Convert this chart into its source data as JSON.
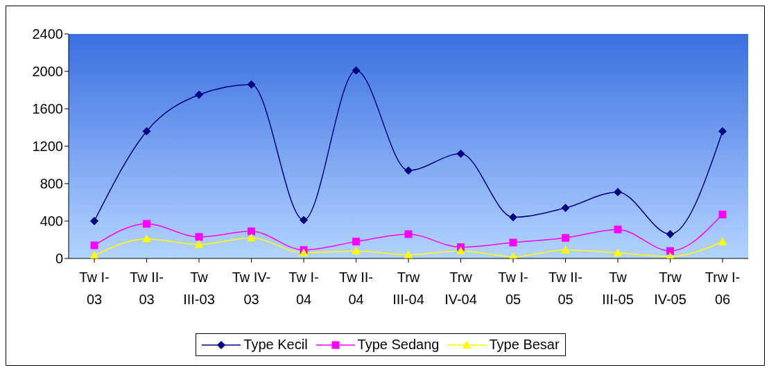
{
  "chart_data": {
    "type": "line",
    "categories": [
      "Tw I-03",
      "Tw II-03",
      "Tw III-03",
      "Tw IV-03",
      "Tw I-04",
      "Tw II-04",
      "Trw III-04",
      "Trw IV-04",
      "Tw I-05",
      "Tw II-05",
      "Tw III-05",
      "Trw IV-05",
      "Trw I-06"
    ],
    "series": [
      {
        "name": "Type Kecil",
        "color": "#000080",
        "marker": "diamond",
        "values": [
          400,
          1360,
          1750,
          1860,
          410,
          2010,
          940,
          1120,
          440,
          540,
          710,
          260,
          1360
        ]
      },
      {
        "name": "Type Sedang",
        "color": "#ff00ff",
        "marker": "square",
        "values": [
          140,
          370,
          230,
          290,
          90,
          180,
          260,
          120,
          170,
          220,
          310,
          80,
          470
        ]
      },
      {
        "name": "Type Besar",
        "color": "#ffff00",
        "marker": "triangle",
        "values": [
          30,
          210,
          150,
          220,
          60,
          80,
          40,
          80,
          20,
          90,
          60,
          20,
          180
        ]
      }
    ],
    "ylim": [
      0,
      2400
    ],
    "yticks": [
      0,
      400,
      800,
      1200,
      1600,
      2000,
      2400
    ],
    "grid": false,
    "legend": "bottom",
    "line_style": "solid"
  }
}
